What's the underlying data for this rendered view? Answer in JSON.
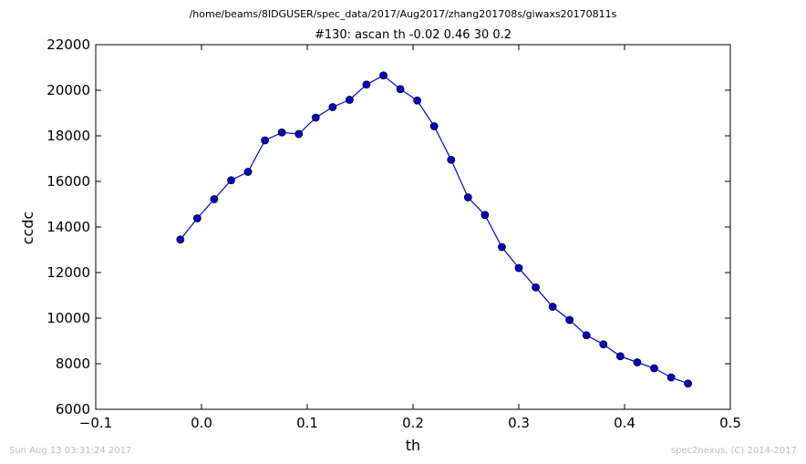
{
  "footer": {
    "timestamp": "Sun Aug 13 03:31:24 2017",
    "credit": "spec2nexus, (C) 2014-2017"
  },
  "chart_data": {
    "type": "line",
    "suptitle": "/home/beams/8IDGUSER/spec_data/2017/Aug2017/zhang201708s/giwaxs20170811s",
    "title": "#130: ascan  th -0.02 0.46  30 0.2",
    "xlabel": "th",
    "ylabel": "ccdc",
    "xlim": [
      -0.1,
      0.5
    ],
    "ylim": [
      6000,
      22000
    ],
    "xticks": [
      "−0.1",
      "0.0",
      "0.1",
      "0.2",
      "0.3",
      "0.4",
      "0.5"
    ],
    "yticks": [
      "6000",
      "8000",
      "10000",
      "12000",
      "14000",
      "16000",
      "18000",
      "20000",
      "22000"
    ],
    "grid": false,
    "line_color": "#0000ff",
    "marker_color": "#0000cc",
    "series": [
      {
        "x": [
          -0.02,
          -0.004,
          0.012,
          0.028,
          0.044,
          0.06,
          0.076,
          0.092,
          0.108,
          0.124,
          0.14,
          0.156,
          0.172,
          0.188,
          0.204,
          0.22,
          0.236,
          0.252,
          0.268,
          0.284,
          0.3,
          0.316,
          0.332,
          0.348,
          0.364,
          0.38,
          0.396,
          0.412,
          0.428,
          0.444,
          0.46
        ],
        "y": [
          13450,
          14380,
          15220,
          16050,
          16420,
          17800,
          18150,
          18080,
          18800,
          19260,
          19580,
          20250,
          20650,
          20050,
          19550,
          18420,
          16950,
          15300,
          14530,
          13120,
          12200,
          11350,
          10500,
          9920,
          9250,
          8850,
          8330,
          8060,
          7800,
          7400,
          7130
        ]
      }
    ]
  }
}
